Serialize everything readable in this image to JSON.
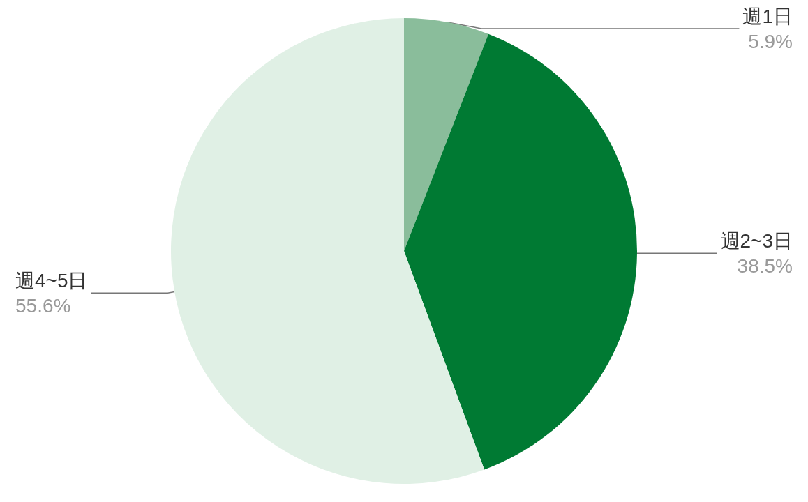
{
  "chart_data": {
    "type": "pie",
    "categories": [
      "週1日",
      "週2~3日",
      "週4~5日"
    ],
    "values": [
      5.9,
      38.5,
      55.6
    ],
    "value_labels": [
      "5.9%",
      "38.5%",
      "55.6%"
    ],
    "colors": [
      "#8abd9b",
      "#007a33",
      "#e0f0e5"
    ],
    "legend": false
  }
}
